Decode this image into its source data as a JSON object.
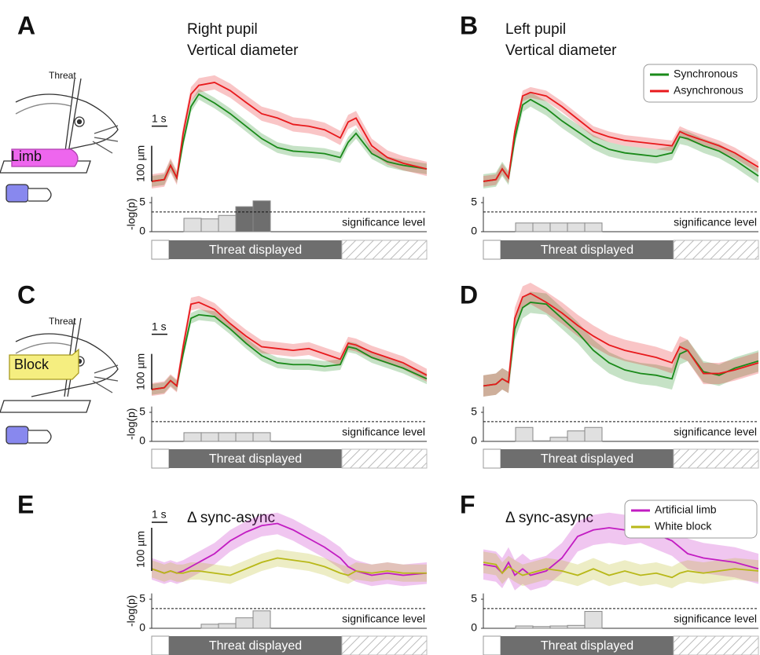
{
  "illustrations": [
    {
      "threat_label": "Threat",
      "object_label": "Limb"
    },
    {
      "threat_label": "Threat",
      "object_label": "Block"
    }
  ],
  "chart_data": [
    {
      "type": "line",
      "label": "A",
      "title": [
        "Right pupil",
        "Vertical diameter"
      ],
      "x": [
        0,
        0.8,
        1.2,
        1.6,
        2,
        2.5,
        3,
        4,
        5,
        6,
        7,
        8,
        9,
        10,
        11,
        12,
        12.5,
        13,
        14,
        15,
        16,
        17.5
      ],
      "xlim": [
        0,
        17.5
      ],
      "ylim": [
        -20,
        300
      ],
      "scalebar": {
        "x": {
          "value": 1,
          "label": "1 s"
        },
        "y": {
          "value": 100,
          "label": "100 µm"
        }
      },
      "series": [
        {
          "color": "#1a8a1a",
          "error": 15,
          "values": [
            0,
            5,
            45,
            10,
            110,
            210,
            245,
            220,
            190,
            155,
            120,
            95,
            85,
            82,
            78,
            67,
            110,
            135,
            78,
            55,
            45,
            35
          ]
        },
        {
          "color": "#e8191c",
          "error": 20,
          "values": [
            0,
            5,
            45,
            10,
            135,
            245,
            270,
            278,
            255,
            222,
            190,
            178,
            160,
            155,
            145,
            122,
            167,
            178,
            100,
            67,
            51,
            35
          ]
        }
      ]
    },
    {
      "type": "histogram",
      "bins": [
        2.05,
        3.15,
        4.25,
        5.35,
        6.45,
        7.55
      ],
      "values": [
        2.3,
        2.2,
        2.8,
        4.3,
        5.3
      ],
      "xlim": [
        0,
        17.5
      ],
      "ylim": [
        0,
        6
      ],
      "yticks": [
        0,
        5
      ],
      "ylabel": "-log(p)",
      "significance": 3.4,
      "significance_label": "significance level",
      "event": [
        1.1,
        12.1
      ],
      "event_label": "Threat displayed",
      "color": "#e0e0e0",
      "highlight_color": "#6e6e6e"
    },
    {
      "type": "line",
      "label": "B",
      "title": [
        "Left pupil",
        "Vertical diameter"
      ],
      "x": [
        0,
        0.8,
        1.2,
        1.6,
        2,
        2.5,
        3,
        4,
        5,
        6,
        7,
        8,
        9,
        10,
        11,
        12,
        12.5,
        13,
        14,
        15,
        16,
        17.5
      ],
      "xlim": [
        0,
        17.5
      ],
      "ylim": [
        -20,
        300
      ],
      "legend": "upper right",
      "series": [
        {
          "name": "Synchronous",
          "color": "#1a8a1a",
          "error": 20,
          "values": [
            0,
            5,
            35,
            10,
            120,
            215,
            230,
            205,
            170,
            140,
            110,
            90,
            80,
            75,
            70,
            80,
            125,
            120,
            100,
            85,
            60,
            15
          ]
        },
        {
          "name": "Asynchronous",
          "color": "#e8191c",
          "error": 15,
          "values": [
            0,
            5,
            35,
            10,
            140,
            240,
            250,
            240,
            210,
            175,
            140,
            125,
            115,
            110,
            105,
            100,
            140,
            130,
            115,
            100,
            80,
            40
          ]
        }
      ]
    },
    {
      "type": "histogram",
      "bins": [
        2.05,
        3.15,
        4.25,
        5.35,
        6.45,
        7.55
      ],
      "values": [
        1.5,
        1.5,
        1.5,
        1.5,
        1.5
      ],
      "xlim": [
        0,
        17.5
      ],
      "ylim": [
        0,
        6
      ],
      "yticks": [
        0,
        5
      ],
      "significance": 3.4,
      "significance_label": "significance level",
      "event": [
        1.1,
        12.1
      ],
      "event_label": "Threat displayed",
      "color": "#e0e0e0",
      "highlight_color": "#6e6e6e"
    },
    {
      "type": "line",
      "label": "C",
      "x": [
        0,
        0.8,
        1.2,
        1.6,
        2,
        2.5,
        3,
        4,
        5,
        6,
        7,
        8,
        9,
        10,
        11,
        12,
        12.5,
        13,
        14,
        15,
        16,
        17.5
      ],
      "xlim": [
        0,
        17.5
      ],
      "ylim": [
        -20,
        300
      ],
      "scalebar": {
        "x": {
          "value": 1,
          "label": "1 s"
        },
        "y": {
          "value": 100,
          "label": "100 µm"
        }
      },
      "series": [
        {
          "color": "#1a8a1a",
          "error": 15,
          "values": [
            0,
            5,
            25,
            10,
            100,
            200,
            210,
            205,
            170,
            130,
            95,
            75,
            70,
            70,
            65,
            70,
            120,
            115,
            90,
            75,
            60,
            30
          ]
        },
        {
          "color": "#e8191c",
          "error": 18,
          "values": [
            0,
            5,
            25,
            10,
            120,
            240,
            245,
            225,
            185,
            150,
            120,
            115,
            110,
            115,
            100,
            85,
            130,
            125,
            105,
            90,
            75,
            40
          ]
        }
      ]
    },
    {
      "type": "histogram",
      "bins": [
        2.05,
        3.15,
        4.25,
        5.35,
        6.45,
        7.55
      ],
      "values": [
        1.5,
        1.5,
        1.5,
        1.5,
        1.5
      ],
      "xlim": [
        0,
        17.5
      ],
      "ylim": [
        0,
        6
      ],
      "yticks": [
        0,
        5
      ],
      "ylabel": "-log(p)",
      "significance": 3.4,
      "significance_label": "significance level",
      "event": [
        1.1,
        12.1
      ],
      "event_label": "Threat displayed",
      "color": "#e0e0e0",
      "highlight_color": "#6e6e6e"
    },
    {
      "type": "line",
      "label": "D",
      "x": [
        0,
        0.8,
        1.2,
        1.6,
        2,
        2.5,
        3,
        4,
        5,
        6,
        7,
        8,
        9,
        10,
        11,
        12,
        12.5,
        13,
        14,
        15,
        16,
        17.5
      ],
      "xlim": [
        0,
        17.5
      ],
      "ylim": [
        -20,
        300
      ],
      "series": [
        {
          "color": "#1a8a1a",
          "error": 30,
          "values": [
            10,
            15,
            30,
            20,
            170,
            230,
            245,
            240,
            200,
            160,
            110,
            75,
            55,
            45,
            40,
            30,
            100,
            110,
            50,
            40,
            60,
            80
          ]
        },
        {
          "color": "#e8191c",
          "error": 30,
          "values": [
            10,
            15,
            30,
            20,
            200,
            260,
            270,
            245,
            215,
            180,
            150,
            125,
            110,
            100,
            90,
            75,
            120,
            110,
            45,
            45,
            55,
            75
          ]
        }
      ]
    },
    {
      "type": "histogram",
      "bins": [
        2.05,
        3.15,
        4.25,
        5.35,
        6.45,
        7.55
      ],
      "values": [
        2.4,
        0.1,
        0.7,
        1.8,
        2.4
      ],
      "xlim": [
        0,
        17.5
      ],
      "ylim": [
        0,
        6
      ],
      "yticks": [
        0,
        5
      ],
      "significance": 3.4,
      "significance_label": "significance level",
      "event": [
        1.1,
        12.1
      ],
      "event_label": "Threat displayed",
      "color": "#e0e0e0",
      "highlight_color": "#6e6e6e"
    },
    {
      "type": "line",
      "label": "E",
      "title": [
        "Δ sync-async"
      ],
      "x": [
        0,
        0.8,
        1.2,
        1.6,
        2,
        2.5,
        3,
        4,
        5,
        6,
        7,
        8,
        9,
        10,
        11,
        12,
        12.5,
        13,
        14,
        15,
        16,
        17.5
      ],
      "xlim": [
        0,
        17.5
      ],
      "ylim": [
        -60,
        140
      ],
      "scalebar": {
        "x": {
          "value": 1,
          "label": "1 s"
        },
        "y": {
          "value": 100,
          "label": "100 µm"
        }
      },
      "series": [
        {
          "color": "#c21cc2",
          "error": 25,
          "values": [
            5,
            -5,
            0,
            -5,
            0,
            10,
            20,
            40,
            70,
            90,
            105,
            110,
            95,
            75,
            55,
            30,
            10,
            0,
            -10,
            -5,
            -10,
            -5
          ]
        },
        {
          "color": "#b8b818",
          "error": 20,
          "values": [
            5,
            -5,
            0,
            -5,
            -5,
            0,
            0,
            -5,
            -10,
            5,
            20,
            30,
            25,
            20,
            10,
            -5,
            -10,
            0,
            -5,
            0,
            -5,
            -5
          ]
        }
      ]
    },
    {
      "type": "histogram",
      "bins": [
        3.15,
        4.25,
        5.35,
        6.45,
        7.55
      ],
      "values": [
        0.7,
        0.8,
        1.8,
        3.0
      ],
      "xlim": [
        0,
        17.5
      ],
      "ylim": [
        0,
        6
      ],
      "yticks": [
        0,
        5
      ],
      "ylabel": "-log(p)",
      "significance": 3.4,
      "significance_label": "significance level",
      "event": [
        1.1,
        12.1
      ],
      "event_label": "Threat displayed",
      "color": "#e0e0e0",
      "highlight_color": "#6e6e6e"
    },
    {
      "type": "line",
      "label": "F",
      "title": [
        "Δ sync-async"
      ],
      "x": [
        0,
        0.8,
        1.2,
        1.6,
        2,
        2.5,
        3,
        4,
        5,
        6,
        7,
        8,
        9,
        10,
        11,
        12,
        12.5,
        13,
        14,
        15,
        16,
        17.5
      ],
      "xlim": [
        0,
        17.5
      ],
      "ylim": [
        -60,
        140
      ],
      "legend": "upper right",
      "series": [
        {
          "name": "Artificial limb",
          "color": "#c21cc2",
          "error": 35,
          "values": [
            15,
            10,
            -5,
            20,
            -10,
            5,
            -10,
            0,
            30,
            80,
            95,
            100,
            95,
            100,
            85,
            70,
            55,
            40,
            30,
            25,
            20,
            5
          ]
        },
        {
          "name": "White block",
          "color": "#b8b818",
          "error": 25,
          "values": [
            20,
            15,
            -5,
            10,
            0,
            -10,
            -5,
            5,
            0,
            -10,
            5,
            -10,
            0,
            -10,
            -5,
            -15,
            -5,
            0,
            -5,
            0,
            5,
            0
          ]
        }
      ]
    },
    {
      "type": "histogram",
      "bins": [
        2.05,
        3.15,
        4.25,
        5.35,
        6.45,
        7.55
      ],
      "values": [
        0.4,
        0.3,
        0.4,
        0.5,
        2.9
      ],
      "xlim": [
        0,
        17.5
      ],
      "ylim": [
        0,
        6
      ],
      "yticks": [
        0,
        5
      ],
      "significance": 3.4,
      "significance_label": "significance level",
      "event": [
        1.1,
        12.1
      ],
      "event_label": "Threat displayed",
      "color": "#e0e0e0",
      "highlight_color": "#6e6e6e"
    }
  ]
}
